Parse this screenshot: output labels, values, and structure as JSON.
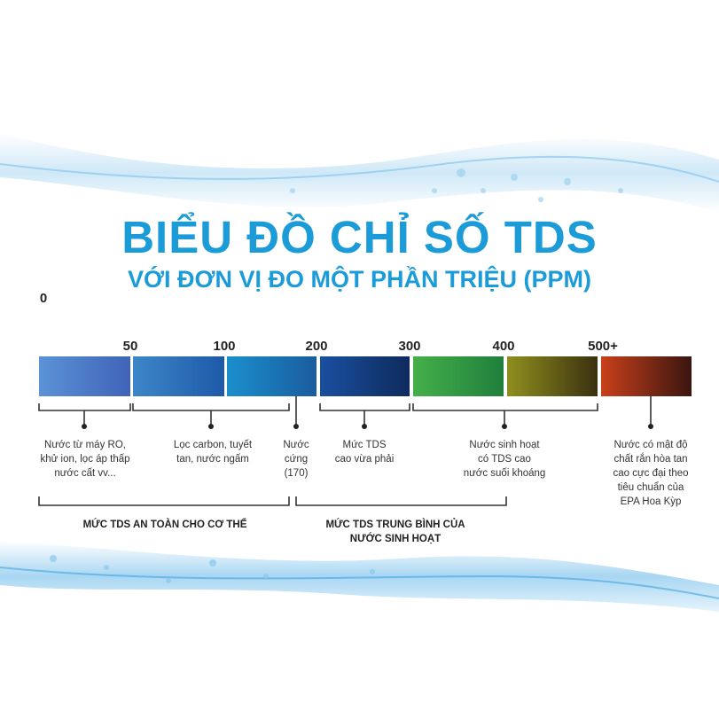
{
  "title": "BIỂU ĐỒ CHỈ SỐ TDS",
  "subtitle": "VỚI ĐƠN VỊ ĐO MỘT PHẦN TRIỆU (PPM)",
  "scale": {
    "zero_label": "0",
    "ticks": [
      "50",
      "100",
      "200",
      "300",
      "400",
      "500+"
    ],
    "segment_colors": [
      [
        "#5b93d6",
        "#3f63b8"
      ],
      [
        "#3d86c8",
        "#1d5aa8"
      ],
      [
        "#1b8fcc",
        "#1a5c9e"
      ],
      [
        "#1a4fa0",
        "#0e2b5c"
      ],
      [
        "#45b04a",
        "#1f7f3c"
      ],
      [
        "#8f8f1e",
        "#3a3010"
      ],
      [
        "#c8401a",
        "#3a1510"
      ]
    ]
  },
  "descriptions": [
    "Nước từ máy RO,\nkhử ion, lọc áp thấp\nnước cất vv...",
    "Lọc carbon, tuyết\ntan, nước ngấm",
    "Nước\ncứng\n(170)",
    "Mức TDS\ncao vừa phải",
    "Nước sinh hoạt\ncó TDS cao\nnước suối khoáng",
    "Nước có mật độ\nchất rắn hòa tan\ncao cực đại theo\ntiêu chuẩn của\nEPA Hoa Kỳp"
  ],
  "groups": [
    "MỨC TDS AN TOÀN CHO CƠ THỂ",
    "MỨC TDS TRUNG BÌNH CỦA\nNƯỚC SINH HOẠT"
  ]
}
